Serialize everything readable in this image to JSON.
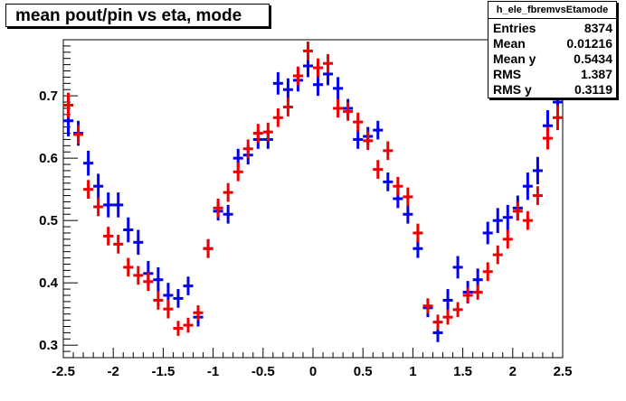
{
  "title": "mean pout/pin vs eta, mode",
  "stats": {
    "name": "h_ele_fbremvsEtamode",
    "rows": [
      {
        "label": "Entries",
        "value": "8374"
      },
      {
        "label": "Mean",
        "value": "0.01216"
      },
      {
        "label": "Mean y",
        "value": "0.5434"
      },
      {
        "label": "RMS",
        "value": "1.387"
      },
      {
        "label": "RMS y",
        "value": "0.3119"
      }
    ]
  },
  "chart_data": {
    "type": "scatter",
    "xlim": [
      -2.5,
      2.5
    ],
    "ylim": [
      0.28,
      0.79
    ],
    "xticks": [
      "-2.5",
      "-2",
      "-1.5",
      "-1",
      "-0.5",
      "0",
      "0.5",
      "1",
      "1.5",
      "2",
      "2.5"
    ],
    "yticks": [
      "0.3",
      "0.4",
      "0.5",
      "0.6",
      "0.7"
    ],
    "colors": {
      "blue": "#0000ee",
      "red": "#ee0000"
    },
    "series": [
      {
        "color": "blue",
        "points": [
          {
            "x": -2.45,
            "y": 0.66,
            "ey": 0.025
          },
          {
            "x": -2.35,
            "y": 0.64,
            "ey": 0.02
          },
          {
            "x": -2.25,
            "y": 0.592,
            "ey": 0.02
          },
          {
            "x": -2.15,
            "y": 0.555,
            "ey": 0.02
          },
          {
            "x": -2.05,
            "y": 0.525,
            "ey": 0.02
          },
          {
            "x": -1.95,
            "y": 0.525,
            "ey": 0.02
          },
          {
            "x": -1.85,
            "y": 0.485,
            "ey": 0.02
          },
          {
            "x": -1.75,
            "y": 0.465,
            "ey": 0.02
          },
          {
            "x": -1.65,
            "y": 0.415,
            "ey": 0.02
          },
          {
            "x": -1.55,
            "y": 0.405,
            "ey": 0.02
          },
          {
            "x": -1.45,
            "y": 0.38,
            "ey": 0.02
          },
          {
            "x": -1.35,
            "y": 0.375,
            "ey": 0.015
          },
          {
            "x": -1.25,
            "y": 0.395,
            "ey": 0.015
          },
          {
            "x": -1.15,
            "y": 0.345,
            "ey": 0.015
          },
          {
            "x": -1.05,
            "y": 0.455,
            "ey": 0.015
          },
          {
            "x": -0.95,
            "y": 0.515,
            "ey": 0.015
          },
          {
            "x": -0.85,
            "y": 0.51,
            "ey": 0.015
          },
          {
            "x": -0.75,
            "y": 0.6,
            "ey": 0.015
          },
          {
            "x": -0.65,
            "y": 0.605,
            "ey": 0.015
          },
          {
            "x": -0.55,
            "y": 0.63,
            "ey": 0.015
          },
          {
            "x": -0.45,
            "y": 0.63,
            "ey": 0.015
          },
          {
            "x": -0.35,
            "y": 0.72,
            "ey": 0.018
          },
          {
            "x": -0.25,
            "y": 0.71,
            "ey": 0.018
          },
          {
            "x": -0.15,
            "y": 0.725,
            "ey": 0.018
          },
          {
            "x": -0.05,
            "y": 0.748,
            "ey": 0.018
          },
          {
            "x": 0.05,
            "y": 0.718,
            "ey": 0.018
          },
          {
            "x": 0.15,
            "y": 0.735,
            "ey": 0.018
          },
          {
            "x": 0.25,
            "y": 0.712,
            "ey": 0.018
          },
          {
            "x": 0.35,
            "y": 0.68,
            "ey": 0.015
          },
          {
            "x": 0.45,
            "y": 0.63,
            "ey": 0.015
          },
          {
            "x": 0.55,
            "y": 0.635,
            "ey": 0.015
          },
          {
            "x": 0.65,
            "y": 0.645,
            "ey": 0.015
          },
          {
            "x": 0.75,
            "y": 0.562,
            "ey": 0.015
          },
          {
            "x": 0.85,
            "y": 0.535,
            "ey": 0.015
          },
          {
            "x": 0.95,
            "y": 0.51,
            "ey": 0.015
          },
          {
            "x": 1.05,
            "y": 0.455,
            "ey": 0.015
          },
          {
            "x": 1.15,
            "y": 0.36,
            "ey": 0.015
          },
          {
            "x": 1.25,
            "y": 0.32,
            "ey": 0.015
          },
          {
            "x": 1.35,
            "y": 0.372,
            "ey": 0.018
          },
          {
            "x": 1.45,
            "y": 0.425,
            "ey": 0.018
          },
          {
            "x": 1.55,
            "y": 0.385,
            "ey": 0.018
          },
          {
            "x": 1.65,
            "y": 0.405,
            "ey": 0.018
          },
          {
            "x": 1.75,
            "y": 0.48,
            "ey": 0.018
          },
          {
            "x": 1.85,
            "y": 0.5,
            "ey": 0.02
          },
          {
            "x": 1.95,
            "y": 0.505,
            "ey": 0.02
          },
          {
            "x": 2.05,
            "y": 0.52,
            "ey": 0.02
          },
          {
            "x": 2.15,
            "y": 0.555,
            "ey": 0.022
          },
          {
            "x": 2.25,
            "y": 0.58,
            "ey": 0.022
          },
          {
            "x": 2.35,
            "y": 0.652,
            "ey": 0.025
          },
          {
            "x": 2.45,
            "y": 0.69,
            "ey": 0.03
          }
        ]
      },
      {
        "color": "red",
        "points": [
          {
            "x": -2.45,
            "y": 0.685,
            "ey": 0.02
          },
          {
            "x": -2.35,
            "y": 0.638,
            "ey": 0.015
          },
          {
            "x": -2.25,
            "y": 0.55,
            "ey": 0.015
          },
          {
            "x": -2.15,
            "y": 0.522,
            "ey": 0.015
          },
          {
            "x": -2.05,
            "y": 0.475,
            "ey": 0.015
          },
          {
            "x": -1.95,
            "y": 0.462,
            "ey": 0.015
          },
          {
            "x": -1.85,
            "y": 0.425,
            "ey": 0.015
          },
          {
            "x": -1.75,
            "y": 0.412,
            "ey": 0.015
          },
          {
            "x": -1.65,
            "y": 0.402,
            "ey": 0.015
          },
          {
            "x": -1.55,
            "y": 0.372,
            "ey": 0.015
          },
          {
            "x": -1.45,
            "y": 0.358,
            "ey": 0.015
          },
          {
            "x": -1.35,
            "y": 0.327,
            "ey": 0.012
          },
          {
            "x": -1.25,
            "y": 0.332,
            "ey": 0.012
          },
          {
            "x": -1.15,
            "y": 0.352,
            "ey": 0.012
          },
          {
            "x": -1.05,
            "y": 0.455,
            "ey": 0.015
          },
          {
            "x": -0.95,
            "y": 0.52,
            "ey": 0.015
          },
          {
            "x": -0.85,
            "y": 0.545,
            "ey": 0.015
          },
          {
            "x": -0.75,
            "y": 0.578,
            "ey": 0.015
          },
          {
            "x": -0.65,
            "y": 0.615,
            "ey": 0.015
          },
          {
            "x": -0.55,
            "y": 0.64,
            "ey": 0.015
          },
          {
            "x": -0.45,
            "y": 0.642,
            "ey": 0.015
          },
          {
            "x": -0.35,
            "y": 0.665,
            "ey": 0.015
          },
          {
            "x": -0.25,
            "y": 0.682,
            "ey": 0.015
          },
          {
            "x": -0.15,
            "y": 0.732,
            "ey": 0.015
          },
          {
            "x": -0.05,
            "y": 0.772,
            "ey": 0.015
          },
          {
            "x": 0.05,
            "y": 0.745,
            "ey": 0.015
          },
          {
            "x": 0.15,
            "y": 0.752,
            "ey": 0.015
          },
          {
            "x": 0.25,
            "y": 0.68,
            "ey": 0.015
          },
          {
            "x": 0.35,
            "y": 0.675,
            "ey": 0.015
          },
          {
            "x": 0.45,
            "y": 0.658,
            "ey": 0.015
          },
          {
            "x": 0.55,
            "y": 0.628,
            "ey": 0.015
          },
          {
            "x": 0.65,
            "y": 0.582,
            "ey": 0.015
          },
          {
            "x": 0.75,
            "y": 0.612,
            "ey": 0.015
          },
          {
            "x": 0.85,
            "y": 0.555,
            "ey": 0.015
          },
          {
            "x": 0.95,
            "y": 0.538,
            "ey": 0.015
          },
          {
            "x": 1.05,
            "y": 0.48,
            "ey": 0.015
          },
          {
            "x": 1.15,
            "y": 0.363,
            "ey": 0.012
          },
          {
            "x": 1.25,
            "y": 0.337,
            "ey": 0.012
          },
          {
            "x": 1.35,
            "y": 0.345,
            "ey": 0.012
          },
          {
            "x": 1.45,
            "y": 0.357,
            "ey": 0.012
          },
          {
            "x": 1.55,
            "y": 0.38,
            "ey": 0.012
          },
          {
            "x": 1.65,
            "y": 0.385,
            "ey": 0.012
          },
          {
            "x": 1.75,
            "y": 0.418,
            "ey": 0.015
          },
          {
            "x": 1.85,
            "y": 0.445,
            "ey": 0.015
          },
          {
            "x": 1.95,
            "y": 0.47,
            "ey": 0.015
          },
          {
            "x": 2.05,
            "y": 0.515,
            "ey": 0.015
          },
          {
            "x": 2.15,
            "y": 0.5,
            "ey": 0.015
          },
          {
            "x": 2.25,
            "y": 0.54,
            "ey": 0.015
          },
          {
            "x": 2.35,
            "y": 0.632,
            "ey": 0.018
          },
          {
            "x": 2.45,
            "y": 0.665,
            "ey": 0.02
          }
        ]
      }
    ]
  }
}
